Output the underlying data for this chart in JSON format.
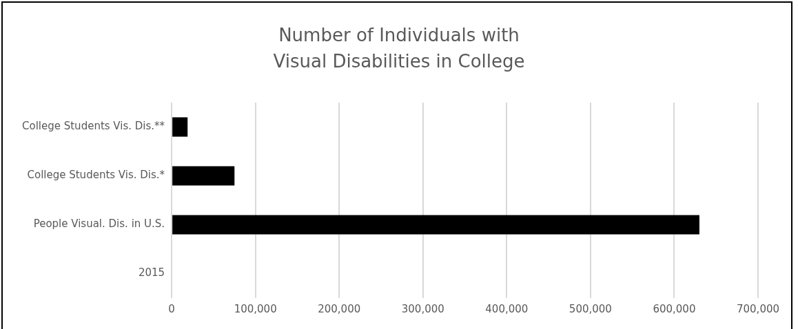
{
  "chart_data": {
    "type": "bar",
    "orientation": "horizontal",
    "title": "Number of Individuals with\nVisual Disabilities in College",
    "categories": [
      "College Students Vis. Dis.**",
      "College Students Vis. Dis.*",
      "People Visual. Dis. in U.S.",
      "2015"
    ],
    "values": [
      19000,
      75000,
      630000,
      null
    ],
    "color": "#000000",
    "xlim": [
      0,
      700000
    ],
    "xticks": [
      {
        "value": 0,
        "label": "0"
      },
      {
        "value": 100000,
        "label": "100,000"
      },
      {
        "value": 200000,
        "label": "200,000"
      },
      {
        "value": 300000,
        "label": "300,000"
      },
      {
        "value": 400000,
        "label": "400,000"
      },
      {
        "value": 500000,
        "label": "500,000"
      },
      {
        "value": 600000,
        "label": "600,000"
      },
      {
        "value": 700000,
        "label": "700,000"
      }
    ],
    "grid": "x",
    "legend": false
  }
}
